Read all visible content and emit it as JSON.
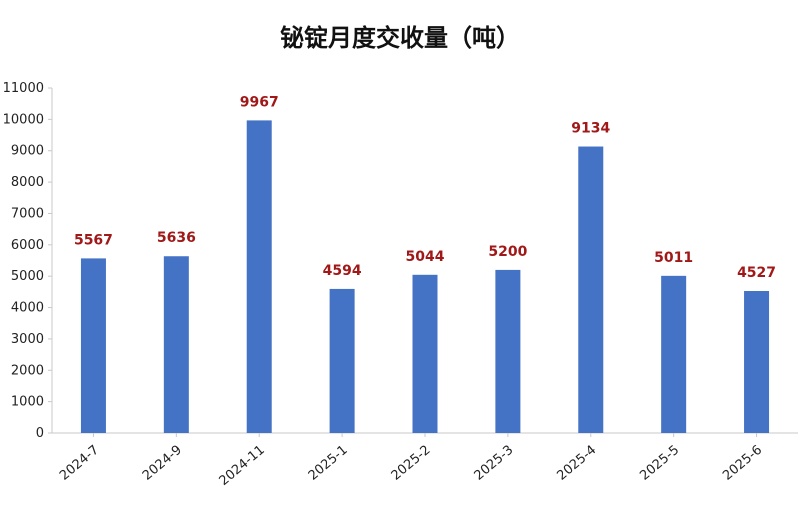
{
  "chart_data": {
    "type": "bar",
    "title": "铋锭月度交收量（吨）",
    "categories": [
      "2024-7",
      "2024-9",
      "2024-11",
      "2025-1",
      "2025-2",
      "2025-3",
      "2025-4",
      "2025-5",
      "2025-6"
    ],
    "values": [
      5567,
      5636,
      9967,
      4594,
      5044,
      5200,
      9134,
      5011,
      4527
    ],
    "data_labels": [
      "5567",
      "5636",
      "9967",
      "4594",
      "5044",
      "5200",
      "9134",
      "5011",
      "4527"
    ],
    "yticks": [
      "0",
      "1000",
      "2000",
      "3000",
      "4000",
      "5000",
      "6000",
      "7000",
      "8000",
      "9000",
      "10000",
      "11000"
    ],
    "ylim": [
      0,
      11000
    ],
    "xlabel": "",
    "ylabel": "",
    "grid": false,
    "legend": "none",
    "bar_color": "#4472c4",
    "label_color": "#a01818"
  }
}
